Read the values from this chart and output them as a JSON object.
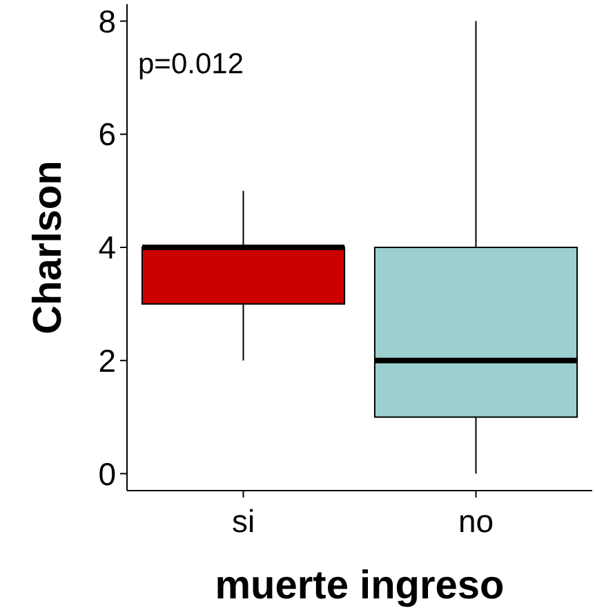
{
  "chart_data": {
    "type": "box",
    "xlabel": "muerte ingreso",
    "ylabel": "Charlson",
    "categories": [
      "si",
      "no"
    ],
    "boxes": [
      {
        "low": 2,
        "q1": 3,
        "median": 4,
        "q3": 4,
        "high": 5
      },
      {
        "low": 0,
        "q1": 1,
        "median": 2,
        "q3": 4,
        "high": 8
      }
    ],
    "colors": [
      "#cc0000",
      "#9ecfd0"
    ],
    "ylim": [
      -0.3,
      8.3
    ],
    "yticks": [
      0,
      2,
      4,
      6,
      8
    ],
    "grid": false,
    "annotations": [
      "p=0.012"
    ]
  }
}
